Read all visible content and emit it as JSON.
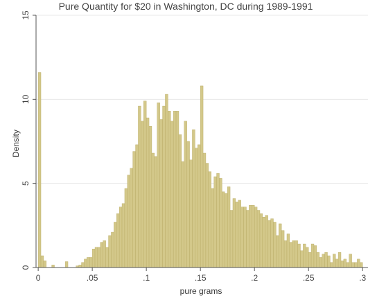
{
  "chart_data": {
    "type": "bar",
    "title": "Pure Quantity for $20 in Washington, DC during 1989-1991",
    "xlabel": "pure grams",
    "ylabel": "Density",
    "xlim": [
      -0.002,
      0.305
    ],
    "ylim": [
      0,
      15
    ],
    "x_ticks": [
      {
        "value": 0,
        "label": "0"
      },
      {
        "value": 0.05,
        "label": ".05"
      },
      {
        "value": 0.1,
        "label": ".1"
      },
      {
        "value": 0.15,
        "label": ".15"
      },
      {
        "value": 0.2,
        "label": ".2"
      },
      {
        "value": 0.25,
        "label": ".25"
      },
      {
        "value": 0.3,
        "label": ".3"
      }
    ],
    "y_ticks": [
      {
        "value": 0,
        "label": "0"
      },
      {
        "value": 5,
        "label": "5"
      },
      {
        "value": 10,
        "label": "10"
      },
      {
        "value": 15,
        "label": "15"
      }
    ],
    "grid": true,
    "bin_width": 0.0025,
    "bins": [
      [
        0.0,
        11.6
      ],
      [
        0.0025,
        0.7
      ],
      [
        0.005,
        0.4
      ],
      [
        0.0075,
        0
      ],
      [
        0.01,
        0
      ],
      [
        0.0125,
        0.15
      ],
      [
        0.015,
        0
      ],
      [
        0.0175,
        0
      ],
      [
        0.02,
        0
      ],
      [
        0.0225,
        0
      ],
      [
        0.025,
        0.35
      ],
      [
        0.0275,
        0
      ],
      [
        0.03,
        0
      ],
      [
        0.0325,
        0
      ],
      [
        0.035,
        0.1
      ],
      [
        0.0375,
        0.15
      ],
      [
        0.04,
        0.3
      ],
      [
        0.0425,
        0.5
      ],
      [
        0.045,
        0.6
      ],
      [
        0.0475,
        0.6
      ],
      [
        0.05,
        1.1
      ],
      [
        0.0525,
        1.2
      ],
      [
        0.055,
        1.2
      ],
      [
        0.0575,
        1.5
      ],
      [
        0.06,
        1.6
      ],
      [
        0.0625,
        1.2
      ],
      [
        0.065,
        1.9
      ],
      [
        0.0675,
        2.1
      ],
      [
        0.07,
        2.7
      ],
      [
        0.0725,
        3.2
      ],
      [
        0.075,
        3.6
      ],
      [
        0.0775,
        3.8
      ],
      [
        0.08,
        4.7
      ],
      [
        0.0825,
        5.5
      ],
      [
        0.085,
        5.9
      ],
      [
        0.0875,
        6.9
      ],
      [
        0.09,
        7.3
      ],
      [
        0.0925,
        9.6
      ],
      [
        0.095,
        8.7
      ],
      [
        0.0975,
        9.9
      ],
      [
        0.1,
        8.9
      ],
      [
        0.1025,
        8.4
      ],
      [
        0.105,
        6.8
      ],
      [
        0.1075,
        6.6
      ],
      [
        0.11,
        9.8
      ],
      [
        0.1125,
        8.8
      ],
      [
        0.115,
        9.6
      ],
      [
        0.1175,
        10.3
      ],
      [
        0.12,
        9.3
      ],
      [
        0.1225,
        8.7
      ],
      [
        0.125,
        9.3
      ],
      [
        0.1275,
        9.3
      ],
      [
        0.13,
        7.9
      ],
      [
        0.1325,
        6.3
      ],
      [
        0.135,
        8.7
      ],
      [
        0.1375,
        7.5
      ],
      [
        0.14,
        6.4
      ],
      [
        0.1425,
        8.2
      ],
      [
        0.145,
        7.1
      ],
      [
        0.1475,
        7.3
      ],
      [
        0.15,
        10.8
      ],
      [
        0.1525,
        6.8
      ],
      [
        0.155,
        6.2
      ],
      [
        0.1575,
        5.7
      ],
      [
        0.16,
        4.7
      ],
      [
        0.1625,
        5.4
      ],
      [
        0.165,
        5.6
      ],
      [
        0.1675,
        5.3
      ],
      [
        0.17,
        4.5
      ],
      [
        0.1725,
        4.4
      ],
      [
        0.175,
        4.8
      ],
      [
        0.1775,
        3.4
      ],
      [
        0.18,
        4.1
      ],
      [
        0.1825,
        3.9
      ],
      [
        0.185,
        4.0
      ],
      [
        0.1875,
        3.6
      ],
      [
        0.19,
        3.6
      ],
      [
        0.1925,
        3.4
      ],
      [
        0.195,
        3.7
      ],
      [
        0.1975,
        3.7
      ],
      [
        0.2,
        3.6
      ],
      [
        0.2025,
        3.4
      ],
      [
        0.205,
        3.2
      ],
      [
        0.2075,
        3.0
      ],
      [
        0.21,
        3.1
      ],
      [
        0.2125,
        2.8
      ],
      [
        0.215,
        2.9
      ],
      [
        0.2175,
        2.7
      ],
      [
        0.22,
        1.9
      ],
      [
        0.2225,
        2.6
      ],
      [
        0.225,
        2.2
      ],
      [
        0.2275,
        1.6
      ],
      [
        0.23,
        2.0
      ],
      [
        0.2325,
        1.5
      ],
      [
        0.235,
        1.6
      ],
      [
        0.2375,
        1.6
      ],
      [
        0.24,
        1.4
      ],
      [
        0.2425,
        1.0
      ],
      [
        0.245,
        1.4
      ],
      [
        0.2475,
        1.2
      ],
      [
        0.25,
        0.9
      ],
      [
        0.2525,
        1.4
      ],
      [
        0.255,
        1.3
      ],
      [
        0.2575,
        0.9
      ],
      [
        0.26,
        0.6
      ],
      [
        0.2625,
        0.8
      ],
      [
        0.265,
        0.9
      ],
      [
        0.2675,
        0.7
      ],
      [
        0.27,
        0.3
      ],
      [
        0.2725,
        0.8
      ],
      [
        0.275,
        0.5
      ],
      [
        0.2775,
        0.9
      ],
      [
        0.28,
        0.4
      ],
      [
        0.2825,
        0.5
      ],
      [
        0.285,
        0.3
      ],
      [
        0.2875,
        0.8
      ],
      [
        0.29,
        0.3
      ],
      [
        0.2925,
        0.3
      ],
      [
        0.295,
        0.5
      ],
      [
        0.2975,
        0.3
      ]
    ],
    "colors": {
      "bar_fill": "#d3c88a",
      "bar_stroke": "#b7a962",
      "grid": "#e8e8e8",
      "axis": "#555555",
      "background": "#ffffff"
    }
  }
}
